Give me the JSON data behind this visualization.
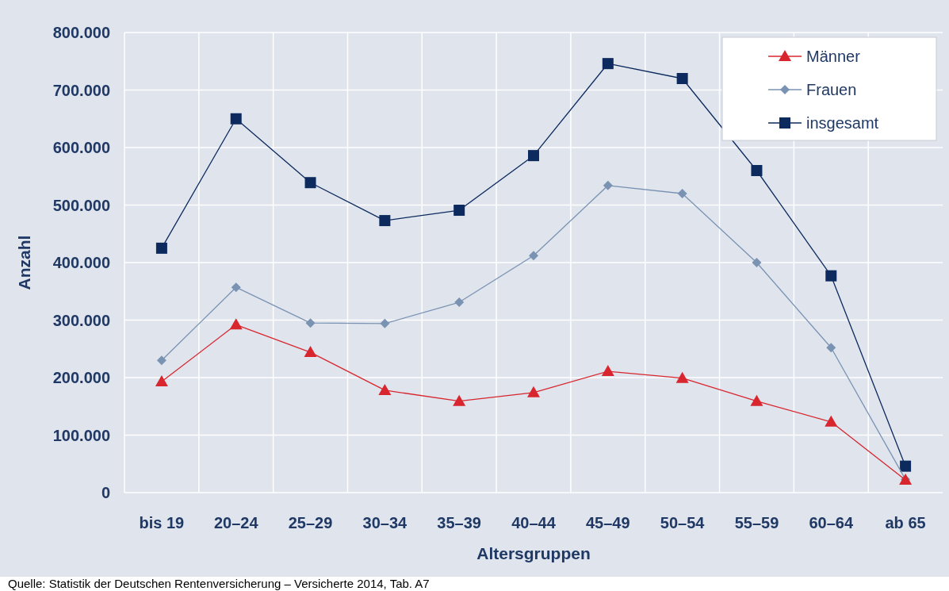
{
  "chart_data": {
    "type": "line",
    "xlabel": "Altersgruppen",
    "ylabel": "Anzahl",
    "categories": [
      "bis 19",
      "20–24",
      "25–29",
      "30–34",
      "35–39",
      "40–44",
      "45–49",
      "50–54",
      "55–59",
      "60–64",
      "ab 65"
    ],
    "series": [
      {
        "name": "Männer",
        "color": "#d9262e",
        "marker": "triangle",
        "values": [
          193000,
          292000,
          244000,
          178000,
          159000,
          174000,
          211000,
          199000,
          159000,
          123000,
          22000
        ]
      },
      {
        "name": "Frauen",
        "color": "#7a93b3",
        "marker": "diamond",
        "values": [
          230000,
          357000,
          295000,
          294000,
          331000,
          412000,
          534000,
          520000,
          400000,
          252000,
          23000
        ]
      },
      {
        "name": "insgesamt",
        "color": "#0d2a5e",
        "marker": "square",
        "values": [
          425000,
          650000,
          539000,
          473000,
          491000,
          586000,
          746000,
          720000,
          560000,
          377000,
          46000
        ]
      }
    ],
    "ylim": [
      0,
      800000
    ],
    "yticks": [
      {
        "value": 0,
        "label": "0"
      },
      {
        "value": 100000,
        "label": "100.000"
      },
      {
        "value": 200000,
        "label": "200.000"
      },
      {
        "value": 300000,
        "label": "300.000"
      },
      {
        "value": 400000,
        "label": "400.000"
      },
      {
        "value": 500000,
        "label": "500.000"
      },
      {
        "value": 600000,
        "label": "600.000"
      },
      {
        "value": 700000,
        "label": "700.000"
      },
      {
        "value": 800000,
        "label": "800.000"
      }
    ],
    "grid": true,
    "legend": "top right",
    "line_style": "solid",
    "annotations": [
      "Quelle: Statistik der Deutschen Rentenversicherung – Versicherte 2014, Tab. A7"
    ]
  }
}
